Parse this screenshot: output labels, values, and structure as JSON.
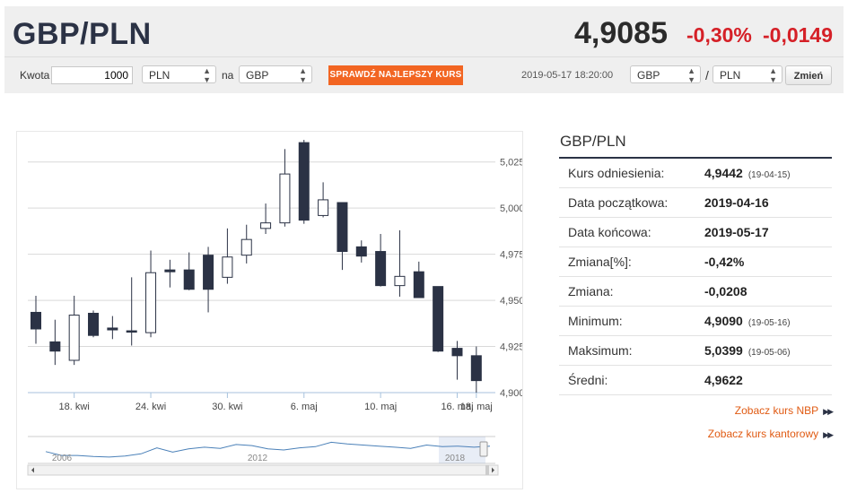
{
  "header": {
    "pair": "GBP/PLN",
    "price": "4,9085",
    "change_pct": "-0,30%",
    "change_abs": "-0,0149"
  },
  "converter": {
    "amount_label": "Kwota",
    "amount_value": "1000",
    "from_currency": "PLN",
    "to_label": "na",
    "to_currency": "GBP",
    "best_rate_button": "SPRAWDŹ NAJLEPSZY KURS",
    "timestamp": "2019-05-17 18:20:00",
    "base_currency": "GBP",
    "separator": "/",
    "quote_currency": "PLN",
    "change_button": "Zmień"
  },
  "colors": {
    "accent": "#f26522",
    "negative": "#d52027",
    "candle_down": "#2b3245",
    "candle_up": "#ffffff",
    "navigator_line": "#4a80b8"
  },
  "chart_data": {
    "type": "candlestick",
    "y_ticks": [
      "5,0250",
      "5,0000",
      "4,9750",
      "4,9500",
      "4,9250",
      "4,9000"
    ],
    "ylim": [
      4.9,
      5.0375
    ],
    "y_axis_side": "right",
    "grid": true,
    "x_labels": [
      {
        "label": "18. kwi",
        "index": 2
      },
      {
        "label": "24. kwi",
        "index": 6
      },
      {
        "label": "30. kwi",
        "index": 10
      },
      {
        "label": "6. maj",
        "index": 14
      },
      {
        "label": "10. maj",
        "index": 18
      },
      {
        "label": "16. maj",
        "index": 22
      },
      {
        "label": "18. maj",
        "index": 23
      }
    ],
    "candles": [
      {
        "o": 4.9435,
        "h": 4.9525,
        "l": 4.9265,
        "c": 4.9345
      },
      {
        "o": 4.9275,
        "h": 4.9395,
        "l": 4.915,
        "c": 4.9225
      },
      {
        "o": 4.9175,
        "h": 4.9525,
        "l": 4.915,
        "c": 4.942
      },
      {
        "o": 4.943,
        "h": 4.9445,
        "l": 4.93,
        "c": 4.931
      },
      {
        "o": 4.935,
        "h": 4.9415,
        "l": 4.929,
        "c": 4.934
      },
      {
        "o": 4.9335,
        "h": 4.9625,
        "l": 4.9255,
        "c": 4.933
      },
      {
        "o": 4.9325,
        "h": 4.977,
        "l": 4.93,
        "c": 4.965
      },
      {
        "o": 4.9665,
        "h": 4.972,
        "l": 4.957,
        "c": 4.9655
      },
      {
        "o": 4.9665,
        "h": 4.976,
        "l": 4.9555,
        "c": 4.956
      },
      {
        "o": 4.9745,
        "h": 4.979,
        "l": 4.9435,
        "c": 4.956
      },
      {
        "o": 4.9625,
        "h": 4.989,
        "l": 4.959,
        "c": 4.9735
      },
      {
        "o": 4.9745,
        "h": 4.991,
        "l": 4.97,
        "c": 4.983
      },
      {
        "o": 4.989,
        "h": 5.0025,
        "l": 4.986,
        "c": 4.992
      },
      {
        "o": 4.992,
        "h": 5.032,
        "l": 4.99,
        "c": 5.0185
      },
      {
        "o": 5.0355,
        "h": 5.037,
        "l": 4.9915,
        "c": 4.9935
      },
      {
        "o": 4.996,
        "h": 5.014,
        "l": 4.995,
        "c": 5.0045
      },
      {
        "o": 5.003,
        "h": 5.003,
        "l": 4.9665,
        "c": 4.9765
      },
      {
        "o": 4.979,
        "h": 4.9825,
        "l": 4.9705,
        "c": 4.974
      },
      {
        "o": 4.9765,
        "h": 4.986,
        "l": 4.9575,
        "c": 4.958
      },
      {
        "o": 4.958,
        "h": 4.988,
        "l": 4.952,
        "c": 4.963
      },
      {
        "o": 4.9655,
        "h": 4.971,
        "l": 4.9515,
        "c": 4.9515
      },
      {
        "o": 4.9575,
        "h": 4.9575,
        "l": 4.922,
        "c": 4.9225
      },
      {
        "o": 4.924,
        "h": 4.928,
        "l": 4.907,
        "c": 4.92
      },
      {
        "o": 4.92,
        "h": 4.925,
        "l": 4.9,
        "c": 4.9065
      }
    ],
    "navigator": {
      "labels": [
        "2006",
        "2012",
        "2018"
      ],
      "series": [
        4.45,
        4.1,
        4.1,
        4.0,
        3.95,
        4.05,
        4.25,
        4.8,
        4.4,
        4.7,
        4.85,
        4.75,
        5.1,
        5.0,
        4.7,
        4.6,
        4.8,
        4.9,
        5.3,
        5.15,
        5.05,
        4.95,
        4.85,
        4.75,
        5.05,
        4.9,
        4.95,
        4.85,
        4.95
      ]
    }
  },
  "stats": {
    "title": "GBP/PLN",
    "rows": [
      {
        "label": "Kurs odniesienia:",
        "value": "4,9442",
        "date": "(19-04-15)"
      },
      {
        "label": "Data początkowa:",
        "value": "2019-04-16",
        "date": ""
      },
      {
        "label": "Data końcowa:",
        "value": "2019-05-17",
        "date": ""
      },
      {
        "label": "Zmiana[%]:",
        "value": "-0,42%",
        "date": ""
      },
      {
        "label": "Zmiana:",
        "value": "-0,0208",
        "date": ""
      },
      {
        "label": "Minimum:",
        "value": "4,9090",
        "date": "(19-05-16)"
      },
      {
        "label": "Maksimum:",
        "value": "5,0399",
        "date": "(19-05-06)"
      },
      {
        "label": "Średni:",
        "value": "4,9622",
        "date": ""
      }
    ],
    "links": [
      {
        "label": "Zobacz kurs NBP"
      },
      {
        "label": "Zobacz kurs kantorowy"
      }
    ]
  }
}
